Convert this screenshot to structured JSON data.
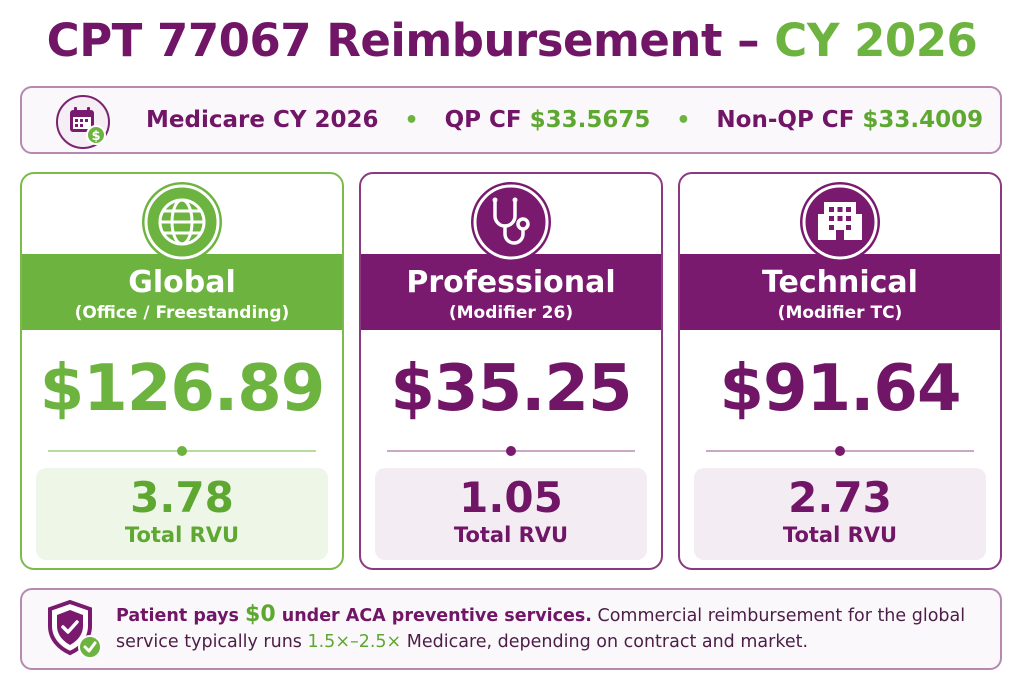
{
  "title": {
    "main": "CPT 77067 Reimbursement – ",
    "accent": "CY 2026"
  },
  "info": {
    "year_label": "Medicare CY 2026",
    "qp_label": "QP CF",
    "qp_value": "$33.5675",
    "nonqp_label": "Non-QP CF",
    "nonqp_value": "$33.4009",
    "separator": "•",
    "icon": "calendar-dollar-icon"
  },
  "cards": [
    {
      "key": "global",
      "icon": "globe-icon",
      "title": "Global",
      "subtitle": "(Office / Freestanding)",
      "price": "$126.89",
      "rvu": "3.78",
      "rvu_label": "Total RVU"
    },
    {
      "key": "prof",
      "icon": "stethoscope-icon",
      "title": "Professional",
      "subtitle": "(Modifier 26)",
      "price": "$35.25",
      "rvu": "1.05",
      "rvu_label": "Total RVU"
    },
    {
      "key": "tech",
      "icon": "building-icon",
      "title": "Technical",
      "subtitle": "(Modifier TC)",
      "price": "$91.64",
      "rvu": "2.73",
      "rvu_label": "Total RVU"
    }
  ],
  "note": {
    "icon": "shield-check-icon",
    "lead": "Patient pays ",
    "amount": "$0",
    "lead2": " under ACA preventive services.",
    "body1": " Commercial reimbursement for the global service typically runs ",
    "multiplier": "1.5×–2.5×",
    "body2": " Medicare, depending on contract and market."
  },
  "colors": {
    "purple": "#711566",
    "green": "#6db33f"
  }
}
